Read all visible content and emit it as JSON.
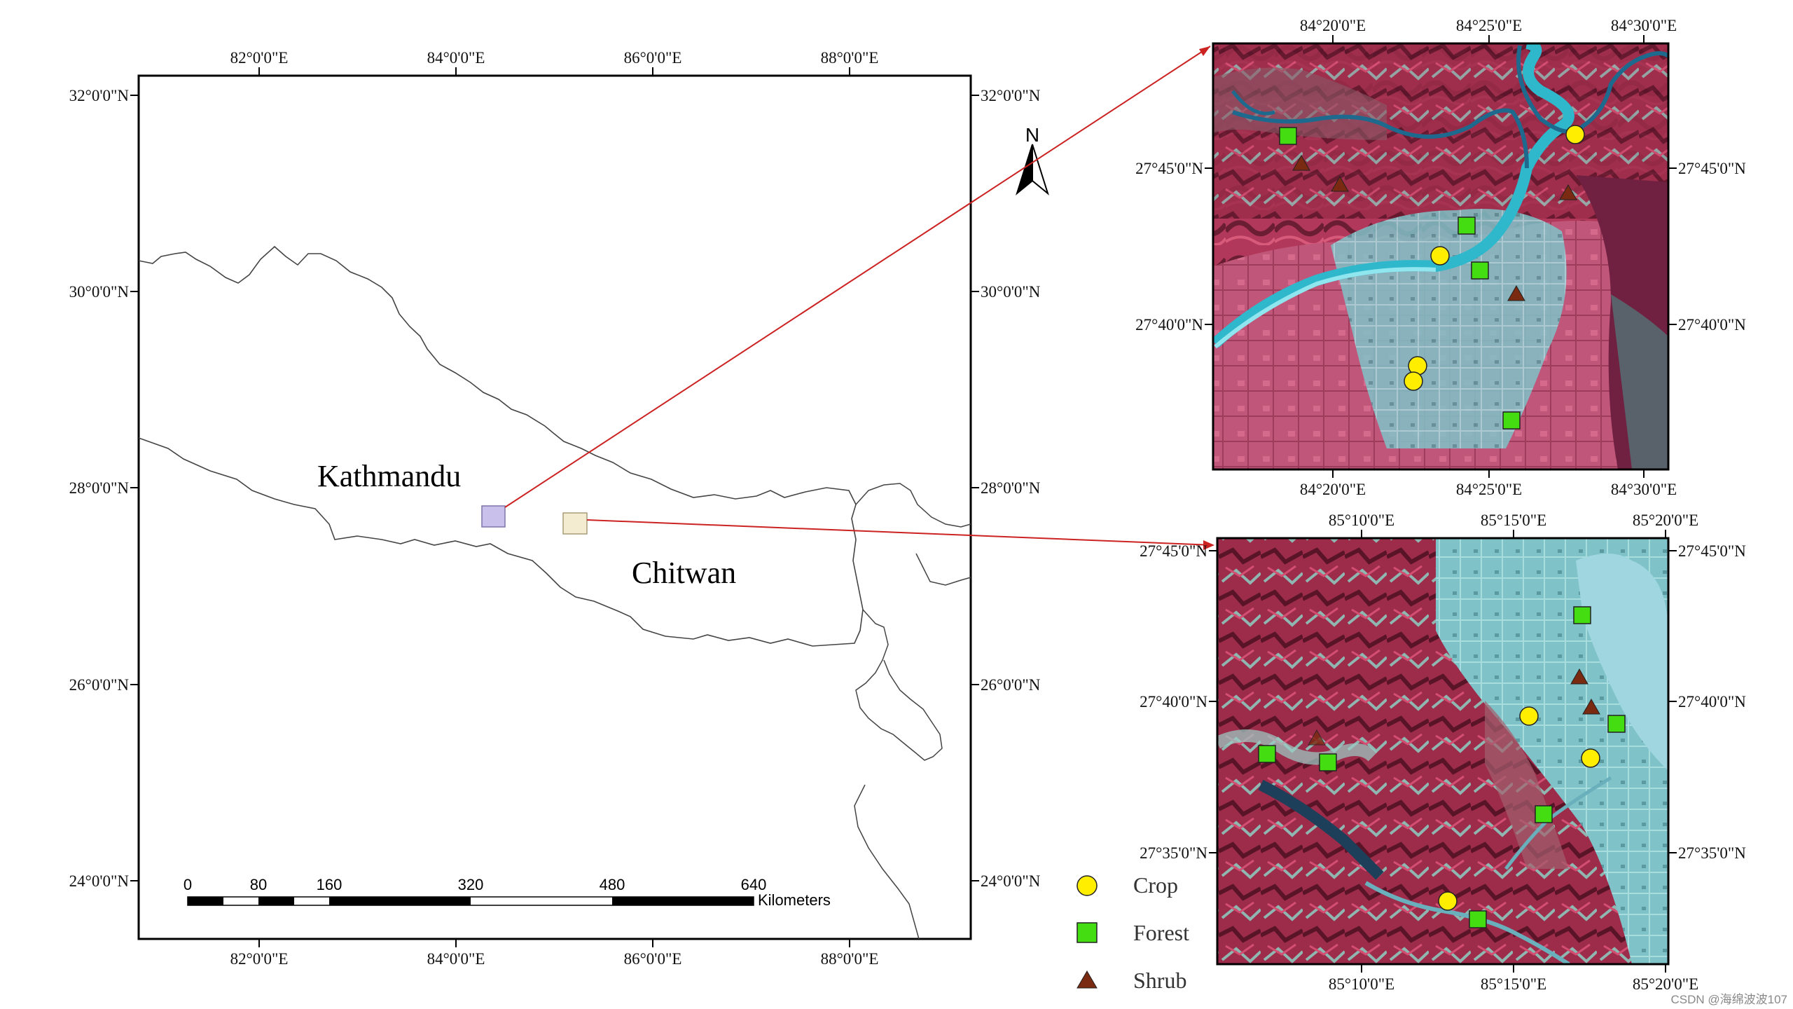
{
  "main_map": {
    "top_ticks": [
      "82°0'0\"E",
      "84°0'0\"E",
      "86°0'0\"E",
      "88°0'0\"E"
    ],
    "bottom_ticks": [
      "82°0'0\"E",
      "84°0'0\"E",
      "86°0'0\"E",
      "88°0'0\"E"
    ],
    "left_ticks": [
      "32°0'0\"N",
      "30°0'0\"N",
      "28°0'0\"N",
      "26°0'0\"N",
      "24°0'0\"N"
    ],
    "right_ticks": [
      "32°0'0\"N",
      "30°0'0\"N",
      "28°0'0\"N",
      "26°0'0\"N",
      "24°0'0\"N"
    ],
    "places": [
      "Kathmandu",
      "Chitwan"
    ],
    "north_label": "N",
    "study_area_colors": [
      "#c9c0ec",
      "#f4ecd0"
    ]
  },
  "scale_bar": {
    "labels": [
      "0",
      "80",
      "160",
      "320",
      "480",
      "640"
    ],
    "unit": "Kilometers"
  },
  "inset_top": {
    "top_ticks": [
      "84°20'0\"E",
      "84°25'0\"E",
      "84°30'0\"E"
    ],
    "bottom_ticks": [
      "84°20'0\"E",
      "84°25'0\"E",
      "84°30'0\"E"
    ],
    "left_ticks": [
      "27°45'0\"N",
      "27°40'0\"N"
    ],
    "right_ticks": [
      "27°45'0\"N",
      "27°40'0\"N"
    ]
  },
  "inset_bottom": {
    "top_ticks": [
      "85°10'0\"E",
      "85°15'0\"E",
      "85°20'0\"E"
    ],
    "bottom_ticks": [
      "85°10'0\"E",
      "85°15'0\"E",
      "85°20'0\"E"
    ],
    "left_ticks": [
      "27°45'0\"N",
      "27°40'0\"N",
      "27°35'0\"N"
    ],
    "right_ticks": [
      "27°45'0\"N",
      "27°40'0\"N",
      "27°35'0\"N"
    ]
  },
  "legend": {
    "items": [
      {
        "label": "Crop",
        "symbol": "circle",
        "color": "#ffee00"
      },
      {
        "label": "Forest",
        "symbol": "square",
        "color": "#44dd11"
      },
      {
        "label": "Shrub",
        "symbol": "triangle",
        "color": "#7a2a10"
      }
    ]
  },
  "credit": "CSDN @海绵波波107",
  "colors": {
    "connector": "#cc2222",
    "vegetation": "#b23a58",
    "urban": "#6fb7bd",
    "river": "#2fb8cc"
  }
}
